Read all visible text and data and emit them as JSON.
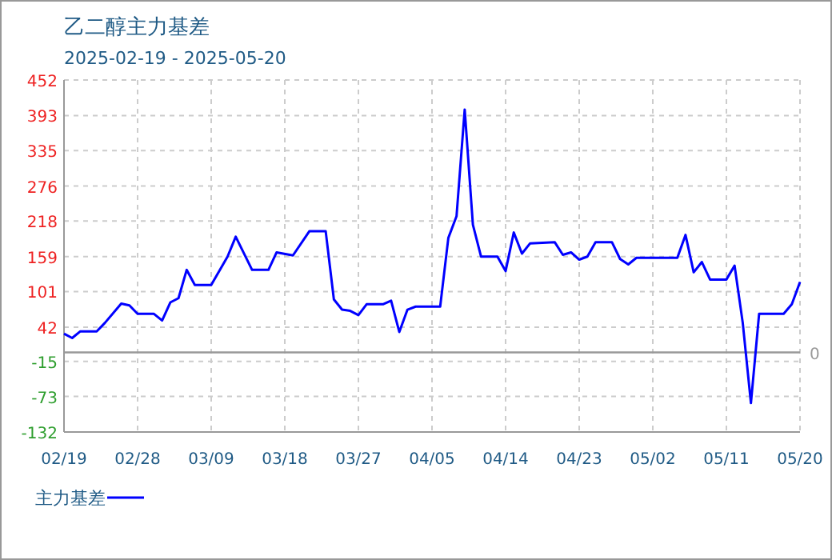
{
  "chart_data": {
    "type": "line",
    "title": "乙二醇主力基差",
    "subtitle": "2025-02-19 - 2025-05-20",
    "x": [
      "2025-02-19",
      "2025-02-20",
      "2025-02-21",
      "2025-02-23",
      "2025-02-24",
      "2025-02-26",
      "2025-02-27",
      "2025-02-28",
      "2025-03-02",
      "2025-03-03",
      "2025-03-04",
      "2025-03-05",
      "2025-03-06",
      "2025-03-07",
      "2025-03-09",
      "2025-03-11",
      "2025-03-12",
      "2025-03-14",
      "2025-03-16",
      "2025-03-17",
      "2025-03-19",
      "2025-03-21",
      "2025-03-23",
      "2025-03-24",
      "2025-03-25",
      "2025-03-26",
      "2025-03-27",
      "2025-03-28",
      "2025-03-30",
      "2025-03-31",
      "2025-04-01",
      "2025-04-02",
      "2025-04-03",
      "2025-04-06",
      "2025-04-07",
      "2025-04-08",
      "2025-04-09",
      "2025-04-10",
      "2025-04-11",
      "2025-04-13",
      "2025-04-14",
      "2025-04-15",
      "2025-04-16",
      "2025-04-17",
      "2025-04-20",
      "2025-04-21",
      "2025-04-22",
      "2025-04-23",
      "2025-04-24",
      "2025-04-25",
      "2025-04-27",
      "2025-04-28",
      "2025-04-29",
      "2025-04-30",
      "2025-05-05",
      "2025-05-06",
      "2025-05-07",
      "2025-05-08",
      "2025-05-09",
      "2025-05-11",
      "2025-05-12",
      "2025-05-13",
      "2025-05-14",
      "2025-05-15",
      "2025-05-18",
      "2025-05-19",
      "2025-05-20"
    ],
    "series": [
      {
        "name": "主力基差",
        "color": "#0000ff",
        "values": [
          31,
          24,
          35,
          35,
          49,
          81,
          78,
          64,
          64,
          53,
          83,
          90,
          137,
          112,
          112,
          159,
          192,
          137,
          137,
          166,
          161,
          201,
          201,
          88,
          71,
          69,
          62,
          80,
          80,
          86,
          34,
          71,
          76,
          76,
          190,
          226,
          403,
          212,
          159,
          159,
          135,
          199,
          164,
          181,
          183,
          162,
          166,
          154,
          159,
          183,
          183,
          155,
          146,
          157,
          157,
          195,
          133,
          150,
          121,
          121,
          144,
          49,
          -84,
          64,
          64,
          80,
          117
        ]
      }
    ],
    "xlim": [
      "2025-02-19",
      "2025-05-20"
    ],
    "xticks": [
      {
        "value": "2025-02-19",
        "label": "02/19"
      },
      {
        "value": "2025-02-28",
        "label": "02/28"
      },
      {
        "value": "2025-03-09",
        "label": "03/09"
      },
      {
        "value": "2025-03-18",
        "label": "03/18"
      },
      {
        "value": "2025-03-27",
        "label": "03/27"
      },
      {
        "value": "2025-04-05",
        "label": "04/05"
      },
      {
        "value": "2025-04-14",
        "label": "04/14"
      },
      {
        "value": "2025-04-23",
        "label": "04/23"
      },
      {
        "value": "2025-05-02",
        "label": "05/02"
      },
      {
        "value": "2025-05-11",
        "label": "05/11"
      },
      {
        "value": "2025-05-20",
        "label": "05/20"
      }
    ],
    "ylim": [
      -132,
      452
    ],
    "yticks": [
      -132,
      -73,
      -15,
      42,
      101,
      159,
      218,
      276,
      335,
      393,
      452
    ],
    "ref_lines": [
      {
        "axis": "y",
        "value": 0,
        "label": "0",
        "color": "#999999"
      }
    ],
    "grid": true,
    "legend": "bottom left",
    "line_style": "solid",
    "marker": "none"
  }
}
